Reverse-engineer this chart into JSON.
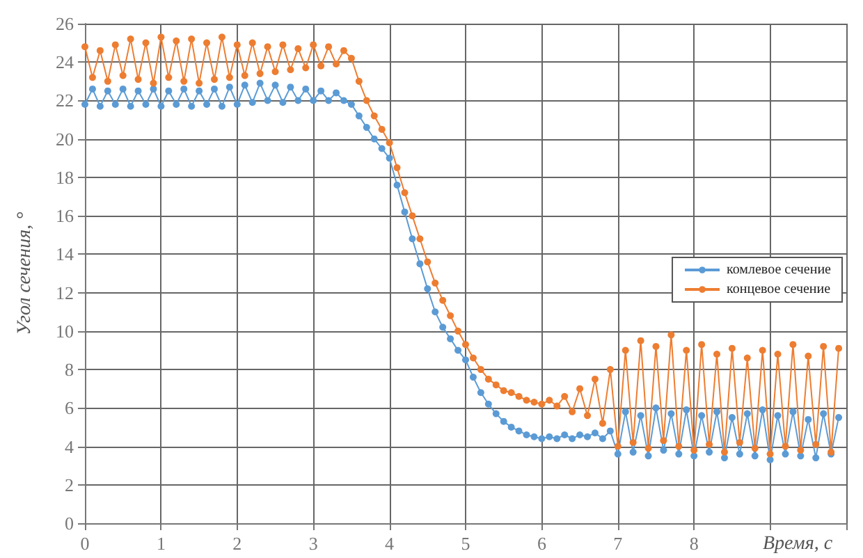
{
  "chart_data": {
    "type": "line",
    "xlabel": "Время, с",
    "ylabel": "Угол сечения, °",
    "x": [
      0,
      0.1,
      0.2,
      0.3,
      0.4,
      0.5,
      0.6,
      0.7,
      0.8,
      0.9,
      1,
      1.1,
      1.2,
      1.3,
      1.4,
      1.5,
      1.6,
      1.7,
      1.8,
      1.9,
      2,
      2.1,
      2.2,
      2.3,
      2.4,
      2.5,
      2.6,
      2.7,
      2.8,
      2.9,
      3,
      3.1,
      3.2,
      3.3,
      3.4,
      3.5,
      3.6,
      3.7,
      3.8,
      3.9,
      4,
      4.1,
      4.2,
      4.3,
      4.4,
      4.5,
      4.6,
      4.7,
      4.8,
      4.9,
      5,
      5.1,
      5.2,
      5.3,
      5.4,
      5.5,
      5.6,
      5.7,
      5.8,
      5.9,
      6,
      6.1,
      6.2,
      6.3,
      6.4,
      6.5,
      6.6,
      6.7,
      6.8,
      6.9,
      7,
      7.1,
      7.2,
      7.3,
      7.4,
      7.5,
      7.6,
      7.7,
      7.8,
      7.9,
      8,
      8.1,
      8.2,
      8.3,
      8.4,
      8.5,
      8.6,
      8.7,
      8.8,
      8.9,
      9,
      9.1,
      9.2,
      9.3,
      9.4,
      9.5,
      9.6,
      9.7,
      9.8,
      9.9
    ],
    "series": [
      {
        "name": "комлевое сечение",
        "color": "#5b9bd5",
        "values": [
          21.8,
          22.6,
          21.7,
          22.5,
          21.8,
          22.6,
          21.7,
          22.5,
          21.8,
          22.6,
          21.7,
          22.5,
          21.8,
          22.6,
          21.7,
          22.5,
          21.8,
          22.6,
          21.7,
          22.7,
          21.8,
          22.8,
          21.9,
          22.9,
          22.0,
          22.8,
          21.9,
          22.7,
          22.0,
          22.6,
          22.0,
          22.5,
          22.0,
          22.4,
          22.0,
          21.8,
          21.2,
          20.6,
          20.0,
          19.5,
          19.0,
          17.6,
          16.2,
          14.8,
          13.5,
          12.2,
          11.0,
          10.2,
          9.6,
          9.0,
          8.5,
          7.6,
          6.8,
          6.2,
          5.7,
          5.3,
          5.0,
          4.8,
          4.6,
          4.5,
          4.4,
          4.5,
          4.4,
          4.6,
          4.4,
          4.6,
          4.5,
          4.7,
          4.4,
          4.8,
          3.6,
          5.8,
          3.7,
          5.6,
          3.5,
          6.0,
          3.8,
          5.7,
          3.6,
          5.9,
          3.5,
          5.6,
          3.7,
          5.8,
          3.4,
          5.5,
          3.6,
          5.7,
          3.5,
          5.9,
          3.3,
          5.6,
          3.6,
          5.8,
          3.5,
          5.4,
          3.4,
          5.7,
          3.6,
          5.5
        ]
      },
      {
        "name": "концевое сечение",
        "color": "#ed7d31",
        "values": [
          24.8,
          23.2,
          24.6,
          23.0,
          24.9,
          23.3,
          25.2,
          23.1,
          25.0,
          22.9,
          25.3,
          23.2,
          25.1,
          23.0,
          25.2,
          22.9,
          25.0,
          23.1,
          25.3,
          23.2,
          24.9,
          23.3,
          25.0,
          23.4,
          24.8,
          23.5,
          24.9,
          23.6,
          24.7,
          23.7,
          24.9,
          23.8,
          24.8,
          23.9,
          24.6,
          24.2,
          23.0,
          22.0,
          21.2,
          20.5,
          19.8,
          18.5,
          17.2,
          16.0,
          14.8,
          13.6,
          12.5,
          11.6,
          10.8,
          10.0,
          9.3,
          8.6,
          8.0,
          7.5,
          7.2,
          6.9,
          6.8,
          6.6,
          6.4,
          6.3,
          6.2,
          6.4,
          6.1,
          6.6,
          5.8,
          7.0,
          5.6,
          7.5,
          5.2,
          8.0,
          4.0,
          9.0,
          4.2,
          9.5,
          3.9,
          9.2,
          4.3,
          9.8,
          4.0,
          9.0,
          3.8,
          9.3,
          4.1,
          8.8,
          3.7,
          9.1,
          4.2,
          8.6,
          3.9,
          9.0,
          3.6,
          8.8,
          4.0,
          9.3,
          3.8,
          8.7,
          4.1,
          9.2,
          3.7,
          9.1
        ]
      }
    ],
    "xlim": [
      0,
      10
    ],
    "xticks": [
      0,
      1,
      2,
      3,
      4,
      5,
      6,
      7,
      8,
      {
        "value": 9,
        "label": null
      },
      {
        "value": 10,
        "label": null
      }
    ],
    "ylim": [
      0,
      26
    ],
    "yticks": [
      0,
      2,
      4,
      6,
      8,
      10,
      12,
      14,
      16,
      18,
      20,
      22,
      24,
      26
    ],
    "grid": true,
    "legend": "right",
    "marker": "circle",
    "line_style": "solid"
  }
}
